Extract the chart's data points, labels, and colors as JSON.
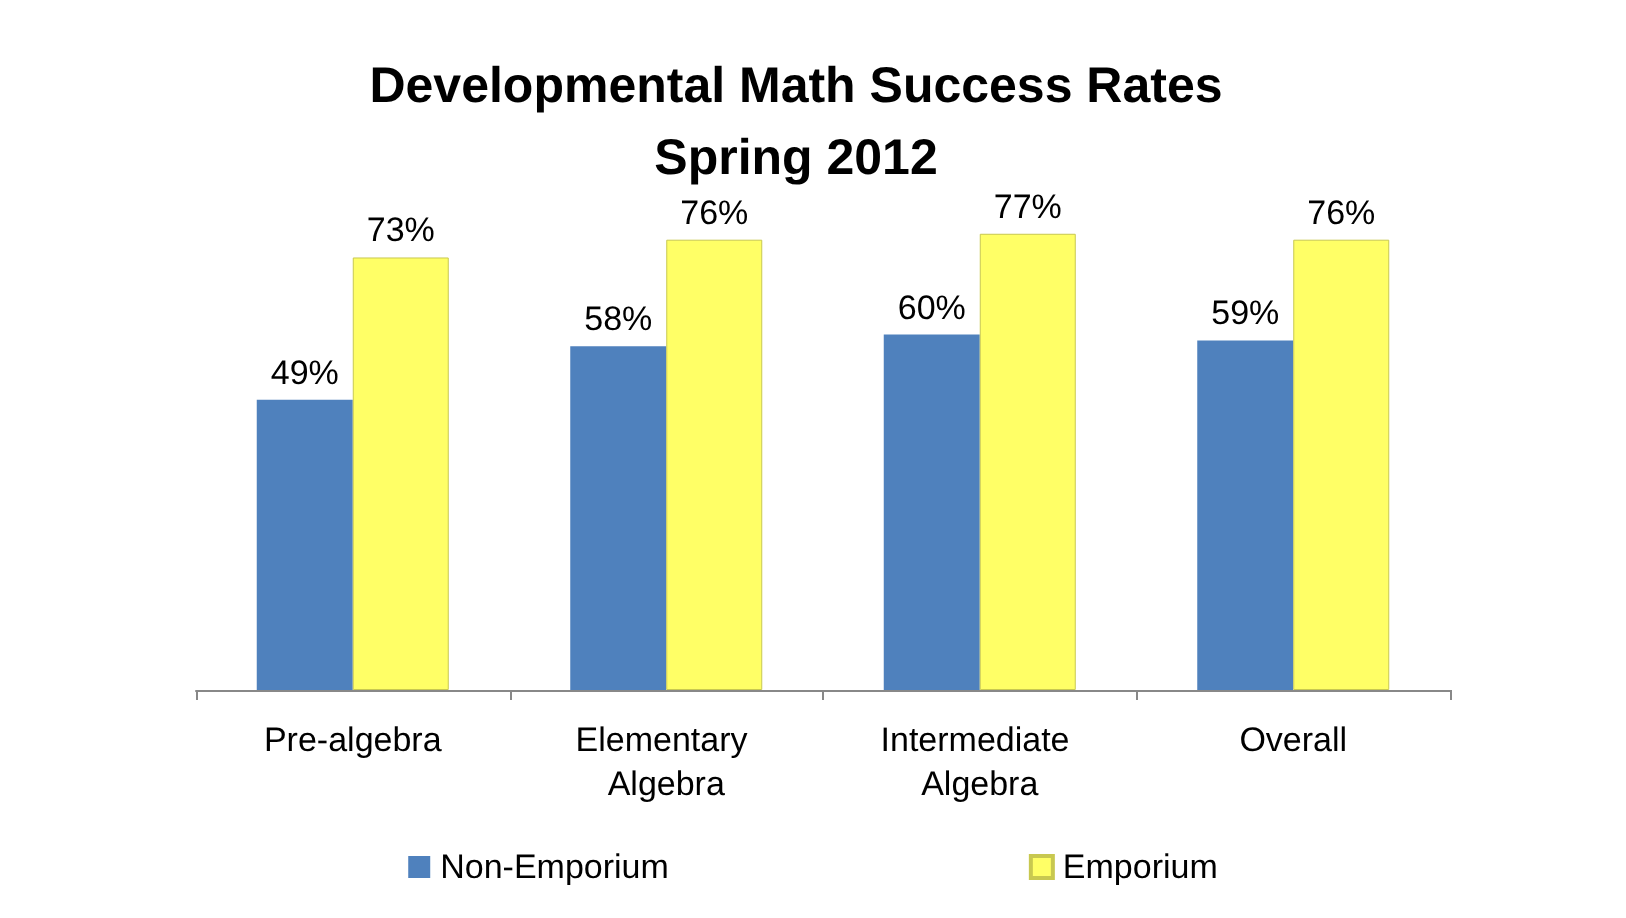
{
  "chart_data": {
    "type": "bar",
    "title": "Developmental Math Success Rates\nSpring 2012",
    "categories": [
      "Pre-algebra",
      "Elementary Algebra",
      "Intermediate Algebra",
      "Overall"
    ],
    "series": [
      {
        "name": "Non-Emporium",
        "color": "#4f81bd",
        "values": [
          49,
          58,
          60,
          59
        ],
        "value_labels": [
          "49%",
          "58%",
          "60%",
          "59%"
        ]
      },
      {
        "name": "Emporium",
        "color": "#ffff66",
        "values": [
          73,
          76,
          77,
          76
        ],
        "value_labels": [
          "73%",
          "76%",
          "77%",
          "76%"
        ]
      }
    ],
    "grid": false,
    "legend": "bottom"
  }
}
